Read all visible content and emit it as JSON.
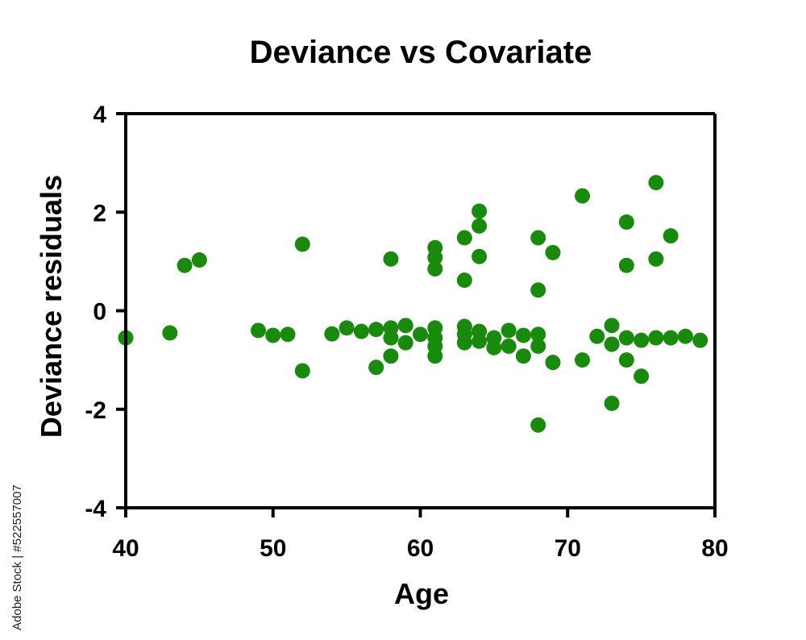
{
  "chart_data": {
    "type": "scatter",
    "title": "Deviance vs Covariate",
    "xlabel": "Age",
    "ylabel": "Deviance residuals",
    "xlim": [
      40,
      80
    ],
    "ylim": [
      -4,
      4
    ],
    "xticks": [
      "40",
      "50",
      "60",
      "70",
      "80"
    ],
    "yticks": [
      "-4",
      "-2",
      "0",
      "2",
      "4"
    ],
    "grid": false,
    "marker_color": "#1a8a0e",
    "points": [
      {
        "x": 40,
        "y": -0.55
      },
      {
        "x": 43,
        "y": -0.45
      },
      {
        "x": 44,
        "y": 0.92
      },
      {
        "x": 45,
        "y": 1.03
      },
      {
        "x": 49,
        "y": -0.4
      },
      {
        "x": 50,
        "y": -0.5
      },
      {
        "x": 51,
        "y": -0.48
      },
      {
        "x": 52,
        "y": 1.35
      },
      {
        "x": 52,
        "y": -1.22
      },
      {
        "x": 54,
        "y": -0.47
      },
      {
        "x": 55,
        "y": -0.35
      },
      {
        "x": 56,
        "y": -0.42
      },
      {
        "x": 57,
        "y": -0.38
      },
      {
        "x": 57,
        "y": -1.15
      },
      {
        "x": 58,
        "y": 1.05
      },
      {
        "x": 58,
        "y": -0.35
      },
      {
        "x": 58,
        "y": -0.55
      },
      {
        "x": 58,
        "y": -0.92
      },
      {
        "x": 59,
        "y": -0.3
      },
      {
        "x": 59,
        "y": -0.65
      },
      {
        "x": 60,
        "y": -0.48
      },
      {
        "x": 61,
        "y": 1.28
      },
      {
        "x": 61,
        "y": 1.08
      },
      {
        "x": 61,
        "y": 0.85
      },
      {
        "x": 61,
        "y": -0.35
      },
      {
        "x": 61,
        "y": -0.55
      },
      {
        "x": 61,
        "y": -0.72
      },
      {
        "x": 61,
        "y": -0.92
      },
      {
        "x": 63,
        "y": 1.48
      },
      {
        "x": 63,
        "y": 0.62
      },
      {
        "x": 63,
        "y": -0.32
      },
      {
        "x": 63,
        "y": -0.48
      },
      {
        "x": 63,
        "y": -0.65
      },
      {
        "x": 64,
        "y": 2.02
      },
      {
        "x": 64,
        "y": 1.72
      },
      {
        "x": 64,
        "y": 1.1
      },
      {
        "x": 64,
        "y": -0.42
      },
      {
        "x": 64,
        "y": -0.62
      },
      {
        "x": 65,
        "y": -0.55
      },
      {
        "x": 65,
        "y": -0.75
      },
      {
        "x": 66,
        "y": -0.4
      },
      {
        "x": 66,
        "y": -0.72
      },
      {
        "x": 67,
        "y": -0.5
      },
      {
        "x": 67,
        "y": -0.92
      },
      {
        "x": 68,
        "y": 1.48
      },
      {
        "x": 68,
        "y": 0.42
      },
      {
        "x": 68,
        "y": -0.48
      },
      {
        "x": 68,
        "y": -0.72
      },
      {
        "x": 68,
        "y": -2.32
      },
      {
        "x": 69,
        "y": 1.18
      },
      {
        "x": 69,
        "y": -1.05
      },
      {
        "x": 71,
        "y": 2.33
      },
      {
        "x": 71,
        "y": -1.0
      },
      {
        "x": 72,
        "y": -0.52
      },
      {
        "x": 73,
        "y": -0.3
      },
      {
        "x": 73,
        "y": -0.68
      },
      {
        "x": 73,
        "y": -1.88
      },
      {
        "x": 74,
        "y": 1.8
      },
      {
        "x": 74,
        "y": 0.92
      },
      {
        "x": 74,
        "y": -0.55
      },
      {
        "x": 74,
        "y": -1.0
      },
      {
        "x": 75,
        "y": -0.6
      },
      {
        "x": 75,
        "y": -1.33
      },
      {
        "x": 76,
        "y": 2.6
      },
      {
        "x": 76,
        "y": 1.05
      },
      {
        "x": 76,
        "y": -0.55
      },
      {
        "x": 77,
        "y": 1.52
      },
      {
        "x": 77,
        "y": -0.55
      },
      {
        "x": 78,
        "y": -0.52
      },
      {
        "x": 79,
        "y": -0.6
      }
    ]
  },
  "watermark": "Adobe Stock | #522557007"
}
